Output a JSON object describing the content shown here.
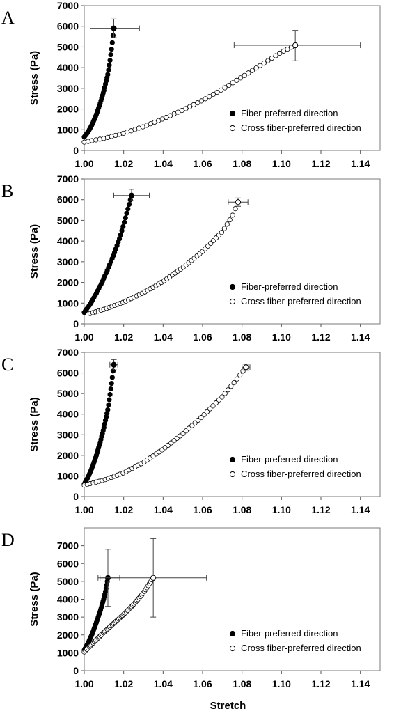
{
  "chart_data": [
    {
      "type": "scatter",
      "panel_label": "A",
      "xlabel": "",
      "ylabel": "Stress (Pa)",
      "xlim": [
        1.0,
        1.15
      ],
      "ylim": [
        0,
        7000
      ],
      "xticks": [
        "1.00",
        "1.02",
        "1.04",
        "1.06",
        "1.08",
        "1.10",
        "1.12",
        "1.14"
      ],
      "yticks": [
        "0",
        "1000",
        "2000",
        "3000",
        "4000",
        "5000",
        "6000",
        "7000"
      ],
      "legend_position": "bottom-right",
      "series": [
        {
          "name": "Fiber-preferred direction",
          "marker": "filled-circle",
          "end_point": {
            "x": 1.015,
            "y": 5900
          },
          "points": [
            {
              "x": 1.0,
              "y": 650
            },
            {
              "x": 1.002,
              "y": 900
            },
            {
              "x": 1.004,
              "y": 1250
            },
            {
              "x": 1.006,
              "y": 1700
            },
            {
              "x": 1.008,
              "y": 2250
            },
            {
              "x": 1.01,
              "y": 2900
            },
            {
              "x": 1.012,
              "y": 3700
            },
            {
              "x": 1.013,
              "y": 4300
            },
            {
              "x": 1.014,
              "y": 5000
            },
            {
              "x": 1.015,
              "y": 5900
            }
          ],
          "error_x": [
            1.003,
            1.028
          ],
          "error_y": [
            5450,
            6350
          ]
        },
        {
          "name": "Cross fiber-preferred direction",
          "marker": "open-circle",
          "end_point": {
            "x": 1.107,
            "y": 5080
          },
          "points": [
            {
              "x": 1.0,
              "y": 400
            },
            {
              "x": 1.01,
              "y": 580
            },
            {
              "x": 1.02,
              "y": 830
            },
            {
              "x": 1.03,
              "y": 1150
            },
            {
              "x": 1.04,
              "y": 1530
            },
            {
              "x": 1.05,
              "y": 1950
            },
            {
              "x": 1.06,
              "y": 2420
            },
            {
              "x": 1.07,
              "y": 2950
            },
            {
              "x": 1.08,
              "y": 3550
            },
            {
              "x": 1.09,
              "y": 4150
            },
            {
              "x": 1.1,
              "y": 4750
            },
            {
              "x": 1.107,
              "y": 5080
            }
          ],
          "error_x": [
            1.076,
            1.14
          ],
          "error_y": [
            4330,
            5800
          ]
        }
      ]
    },
    {
      "type": "scatter",
      "panel_label": "B",
      "xlabel": "",
      "ylabel": "Stress (Pa)",
      "xlim": [
        1.0,
        1.15
      ],
      "ylim": [
        0,
        7000
      ],
      "xticks": [
        "1.00",
        "1.02",
        "1.04",
        "1.06",
        "1.08",
        "1.10",
        "1.12",
        "1.14"
      ],
      "yticks": [
        "0",
        "1000",
        "2000",
        "3000",
        "4000",
        "5000",
        "6000",
        "7000"
      ],
      "legend_position": "bottom-right",
      "series": [
        {
          "name": "Fiber-preferred direction",
          "marker": "filled-circle",
          "end_point": {
            "x": 1.024,
            "y": 6200
          },
          "points": [
            {
              "x": 1.0,
              "y": 550
            },
            {
              "x": 1.003,
              "y": 950
            },
            {
              "x": 1.006,
              "y": 1450
            },
            {
              "x": 1.009,
              "y": 2000
            },
            {
              "x": 1.012,
              "y": 2650
            },
            {
              "x": 1.015,
              "y": 3350
            },
            {
              "x": 1.018,
              "y": 4150
            },
            {
              "x": 1.02,
              "y": 4800
            },
            {
              "x": 1.022,
              "y": 5500
            },
            {
              "x": 1.024,
              "y": 6200
            }
          ],
          "error_x": [
            1.015,
            1.033
          ],
          "error_y": [
            5950,
            6500
          ]
        },
        {
          "name": "Cross fiber-preferred direction",
          "marker": "open-circle",
          "end_point": {
            "x": 1.078,
            "y": 5880
          },
          "points": [
            {
              "x": 1.003,
              "y": 500
            },
            {
              "x": 1.01,
              "y": 700
            },
            {
              "x": 1.02,
              "y": 1050
            },
            {
              "x": 1.03,
              "y": 1500
            },
            {
              "x": 1.04,
              "y": 2050
            },
            {
              "x": 1.05,
              "y": 2720
            },
            {
              "x": 1.06,
              "y": 3500
            },
            {
              "x": 1.07,
              "y": 4450
            },
            {
              "x": 1.075,
              "y": 5200
            },
            {
              "x": 1.078,
              "y": 5880
            }
          ],
          "error_x": [
            1.073,
            1.083
          ],
          "error_y": [
            5680,
            6080
          ]
        }
      ]
    },
    {
      "type": "scatter",
      "panel_label": "C",
      "xlabel": "",
      "ylabel": "Stress (Pa)",
      "xlim": [
        1.0,
        1.15
      ],
      "ylim": [
        0,
        7000
      ],
      "xticks": [
        "1.00",
        "1.02",
        "1.04",
        "1.06",
        "1.08",
        "1.10",
        "1.12",
        "1.14"
      ],
      "yticks": [
        "0",
        "1000",
        "2000",
        "3000",
        "4000",
        "5000",
        "6000",
        "7000"
      ],
      "legend_position": "bottom-right",
      "series": [
        {
          "name": "Fiber-preferred direction",
          "marker": "filled-circle",
          "end_point": {
            "x": 1.015,
            "y": 6400
          },
          "points": [
            {
              "x": 1.0,
              "y": 600
            },
            {
              "x": 1.002,
              "y": 950
            },
            {
              "x": 1.004,
              "y": 1400
            },
            {
              "x": 1.006,
              "y": 1950
            },
            {
              "x": 1.008,
              "y": 2600
            },
            {
              "x": 1.01,
              "y": 3350
            },
            {
              "x": 1.012,
              "y": 4250
            },
            {
              "x": 1.013,
              "y": 4900
            },
            {
              "x": 1.014,
              "y": 5600
            },
            {
              "x": 1.015,
              "y": 6400
            }
          ],
          "error_x": [
            1.013,
            1.017
          ],
          "error_y": [
            6150,
            6650
          ]
        },
        {
          "name": "Cross fiber-preferred direction",
          "marker": "open-circle",
          "end_point": {
            "x": 1.082,
            "y": 6280
          },
          "points": [
            {
              "x": 1.0,
              "y": 550
            },
            {
              "x": 1.01,
              "y": 800
            },
            {
              "x": 1.02,
              "y": 1150
            },
            {
              "x": 1.03,
              "y": 1650
            },
            {
              "x": 1.04,
              "y": 2300
            },
            {
              "x": 1.05,
              "y": 3050
            },
            {
              "x": 1.06,
              "y": 3900
            },
            {
              "x": 1.07,
              "y": 4850
            },
            {
              "x": 1.077,
              "y": 5650
            },
            {
              "x": 1.082,
              "y": 6280
            }
          ],
          "error_x": [
            1.08,
            1.084
          ],
          "error_y": [
            6130,
            6430
          ]
        }
      ]
    },
    {
      "type": "scatter",
      "panel_label": "D",
      "xlabel": "Stretch",
      "ylabel": "Stress (Pa)",
      "xlim": [
        1.0,
        1.15
      ],
      "ylim": [
        0,
        8000
      ],
      "xticks": [
        "1.00",
        "1.02",
        "1.04",
        "1.06",
        "1.08",
        "1.10",
        "1.12",
        "1.14"
      ],
      "yticks": [
        "0",
        "1000",
        "2000",
        "3000",
        "4000",
        "5000",
        "6000",
        "7000"
      ],
      "legend_position": "bottom-right",
      "series": [
        {
          "name": "Fiber-preferred direction",
          "marker": "filled-circle",
          "end_point": {
            "x": 1.012,
            "y": 5200
          },
          "points": [
            {
              "x": 1.0,
              "y": 1150
            },
            {
              "x": 1.002,
              "y": 1550
            },
            {
              "x": 1.004,
              "y": 2050
            },
            {
              "x": 1.006,
              "y": 2650
            },
            {
              "x": 1.008,
              "y": 3300
            },
            {
              "x": 1.01,
              "y": 4050
            },
            {
              "x": 1.011,
              "y": 4550
            },
            {
              "x": 1.012,
              "y": 5200
            }
          ],
          "error_x": [
            1.007,
            1.018
          ],
          "error_y": [
            3600,
            6800
          ]
        },
        {
          "name": "Cross fiber-preferred direction",
          "marker": "open-circle",
          "end_point": {
            "x": 1.035,
            "y": 5200
          },
          "points": [
            {
              "x": 1.0,
              "y": 1050
            },
            {
              "x": 1.005,
              "y": 1600
            },
            {
              "x": 1.01,
              "y": 2150
            },
            {
              "x": 1.015,
              "y": 2650
            },
            {
              "x": 1.02,
              "y": 3150
            },
            {
              "x": 1.025,
              "y": 3700
            },
            {
              "x": 1.03,
              "y": 4350
            },
            {
              "x": 1.035,
              "y": 5200
            }
          ],
          "error_x": [
            1.008,
            1.062
          ],
          "error_y": [
            3000,
            7400
          ]
        }
      ]
    }
  ]
}
